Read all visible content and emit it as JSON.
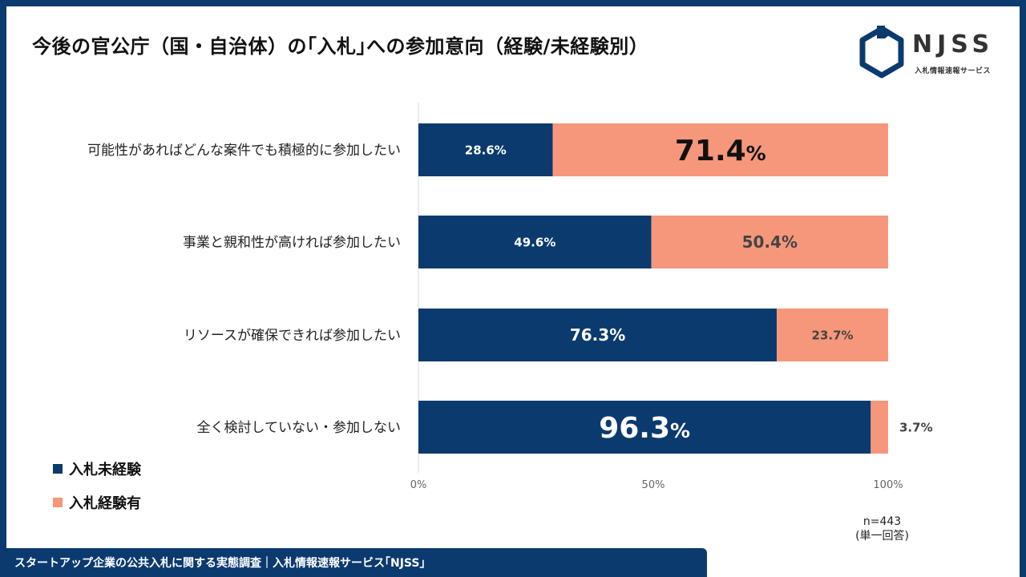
{
  "title": "今後の官公庁（国・自治体）の｢入札｣への参加意向（経験/未経験別）",
  "logo": {
    "text": "NJSS",
    "subtitle": "入札情報速報サービス",
    "color": "#0b3a6e"
  },
  "legend": [
    {
      "name": "入札未経験",
      "color": "#0b3a6e"
    },
    {
      "name": "入札経験有",
      "color": "#f6977b"
    }
  ],
  "note": {
    "n": "n=443",
    "type": "(単一回答)"
  },
  "footer": {
    "text": "スタートアップ企業の公共入札に関する実態調査｜入札情報速報サービス｢NJSS｣"
  },
  "chart_data": {
    "type": "bar",
    "orientation": "horizontal",
    "stacked": true,
    "categories": [
      "可能性があればどんな案件でも積極的に参加したい",
      "事業と親和性が高ければ参加したい",
      "リソースが確保できれば参加したい",
      "全く検討していない・参加しない"
    ],
    "series": [
      {
        "name": "入札未経験",
        "color": "#0b3a6e",
        "values": [
          28.6,
          49.6,
          76.3,
          96.3
        ],
        "labels": [
          "28.6%",
          "49.6%",
          "76.3%",
          "96.3%"
        ]
      },
      {
        "name": "入札経験有",
        "color": "#f6977b",
        "values": [
          71.4,
          50.4,
          23.7,
          3.7
        ],
        "labels": [
          "71.4%",
          "50.4%",
          "23.7%",
          "3.7%"
        ]
      }
    ],
    "xlim": [
      0,
      100
    ],
    "xticks": [
      "0%",
      "50%",
      "100%"
    ],
    "xlabel": "",
    "ylabel": "",
    "grid": false
  }
}
